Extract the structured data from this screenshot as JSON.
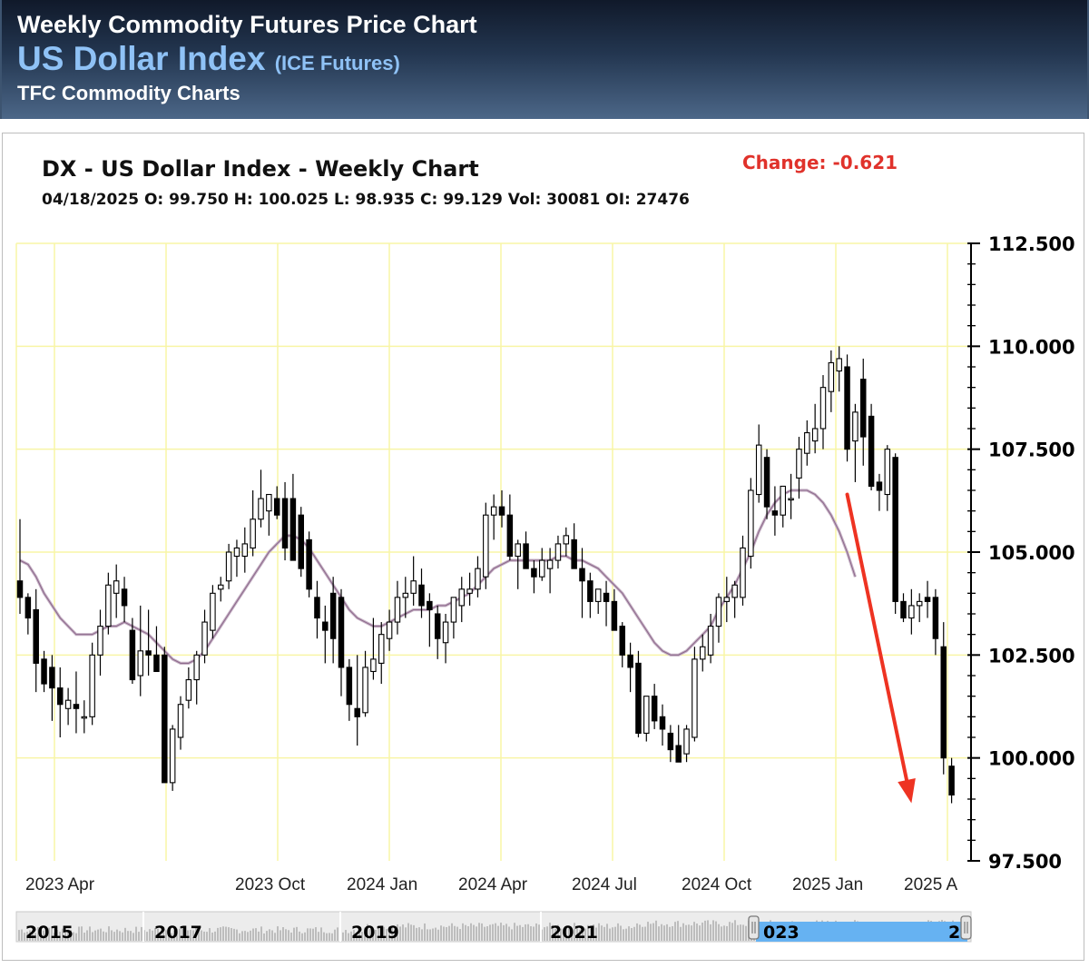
{
  "header": {
    "line1": "Weekly Commodity Futures Price Chart",
    "line2_main": "US Dollar Index",
    "line2_sub": "(ICE Futures)",
    "line3": "TFC Commodity Charts"
  },
  "chart_header": {
    "title": "DX - US Dollar Index - Weekly Chart",
    "change": "Change: -0.621",
    "ohlc": "04/18/2025 O: 99.750 H: 100.025 L: 98.935 C: 99.129 Vol: 30081 OI: 27476"
  },
  "colors": {
    "grid": "#f8f5a6",
    "candle": "#000000",
    "ma_outer": "#c7b3c6",
    "ma_inner": "#8e6b8d",
    "arrow": "#ee3322",
    "change_text": "#e0322b",
    "navigator_highlight": "#66b2f2"
  },
  "chart_data": {
    "type": "candlestick",
    "interval": "weekly",
    "ylim": [
      97.5,
      112.5
    ],
    "y_ticks": [
      "112.500",
      "110.000",
      "107.500",
      "105.000",
      "102.500",
      "100.000",
      "97.500"
    ],
    "x_ticks": [
      "2023 Apr",
      "2023 Oct",
      "2024 Jan",
      "2024 Apr",
      "2024 Jul",
      "2024 Oct",
      "2025 Jan",
      "2025 A"
    ],
    "grid": true,
    "moving_average_line": true,
    "candles": [
      {
        "o": 104.3,
        "h": 105.8,
        "l": 103.5,
        "c": 103.9
      },
      {
        "o": 103.9,
        "h": 104.0,
        "l": 103.0,
        "c": 103.4
      },
      {
        "o": 103.6,
        "h": 104.1,
        "l": 101.6,
        "c": 102.3
      },
      {
        "o": 102.4,
        "h": 102.6,
        "l": 101.6,
        "c": 101.8
      },
      {
        "o": 102.2,
        "h": 102.5,
        "l": 100.9,
        "c": 101.7
      },
      {
        "o": 101.7,
        "h": 102.2,
        "l": 100.5,
        "c": 101.3
      },
      {
        "o": 101.2,
        "h": 101.7,
        "l": 100.8,
        "c": 101.4
      },
      {
        "o": 101.3,
        "h": 102.1,
        "l": 100.6,
        "c": 101.2
      },
      {
        "o": 101.0,
        "h": 101.4,
        "l": 100.6,
        "c": 101.0
      },
      {
        "o": 101.0,
        "h": 102.8,
        "l": 100.8,
        "c": 102.5
      },
      {
        "o": 102.5,
        "h": 103.6,
        "l": 102.0,
        "c": 103.2
      },
      {
        "o": 103.2,
        "h": 104.5,
        "l": 103.0,
        "c": 104.2
      },
      {
        "o": 104.0,
        "h": 104.7,
        "l": 103.4,
        "c": 104.3
      },
      {
        "o": 104.1,
        "h": 104.4,
        "l": 103.3,
        "c": 103.7
      },
      {
        "o": 103.1,
        "h": 103.4,
        "l": 101.8,
        "c": 101.9
      },
      {
        "o": 102.0,
        "h": 103.7,
        "l": 101.5,
        "c": 102.6
      },
      {
        "o": 102.6,
        "h": 103.6,
        "l": 102.0,
        "c": 102.5
      },
      {
        "o": 102.5,
        "h": 103.2,
        "l": 102.2,
        "c": 102.1
      },
      {
        "o": 102.5,
        "h": 102.7,
        "l": 99.4,
        "c": 99.4
      },
      {
        "o": 99.4,
        "h": 100.8,
        "l": 99.2,
        "c": 100.7
      },
      {
        "o": 100.5,
        "h": 101.5,
        "l": 100.2,
        "c": 101.3
      },
      {
        "o": 101.4,
        "h": 102.2,
        "l": 101.2,
        "c": 101.9
      },
      {
        "o": 101.9,
        "h": 102.6,
        "l": 101.3,
        "c": 102.5
      },
      {
        "o": 102.5,
        "h": 103.6,
        "l": 102.3,
        "c": 103.3
      },
      {
        "o": 103.1,
        "h": 104.2,
        "l": 102.9,
        "c": 104.0
      },
      {
        "o": 104.1,
        "h": 104.4,
        "l": 103.8,
        "c": 104.2
      },
      {
        "o": 104.3,
        "h": 105.2,
        "l": 104.1,
        "c": 105.0
      },
      {
        "o": 104.9,
        "h": 105.3,
        "l": 104.4,
        "c": 105.1
      },
      {
        "o": 104.9,
        "h": 105.6,
        "l": 104.5,
        "c": 105.2
      },
      {
        "o": 105.1,
        "h": 106.5,
        "l": 104.9,
        "c": 105.8
      },
      {
        "o": 105.8,
        "h": 107.0,
        "l": 105.6,
        "c": 106.3
      },
      {
        "o": 106.0,
        "h": 106.4,
        "l": 105.4,
        "c": 106.4
      },
      {
        "o": 106.3,
        "h": 106.6,
        "l": 105.8,
        "c": 105.9
      },
      {
        "o": 106.3,
        "h": 106.7,
        "l": 104.8,
        "c": 105.1
      },
      {
        "o": 106.3,
        "h": 106.9,
        "l": 104.9,
        "c": 104.8
      },
      {
        "o": 105.9,
        "h": 106.1,
        "l": 104.4,
        "c": 104.6
      },
      {
        "o": 105.3,
        "h": 105.5,
        "l": 103.9,
        "c": 104.1
      },
      {
        "o": 103.9,
        "h": 104.3,
        "l": 102.9,
        "c": 103.4
      },
      {
        "o": 103.3,
        "h": 103.7,
        "l": 102.3,
        "c": 103.1
      },
      {
        "o": 104.0,
        "h": 104.4,
        "l": 102.3,
        "c": 102.9
      },
      {
        "o": 103.9,
        "h": 104.1,
        "l": 101.5,
        "c": 102.2
      },
      {
        "o": 102.2,
        "h": 102.4,
        "l": 100.9,
        "c": 101.3
      },
      {
        "o": 101.2,
        "h": 102.5,
        "l": 100.3,
        "c": 101.0
      },
      {
        "o": 101.1,
        "h": 102.6,
        "l": 101.0,
        "c": 102.2
      },
      {
        "o": 102.1,
        "h": 103.4,
        "l": 101.9,
        "c": 102.4
      },
      {
        "o": 102.3,
        "h": 103.3,
        "l": 101.8,
        "c": 103.0
      },
      {
        "o": 102.9,
        "h": 103.6,
        "l": 102.6,
        "c": 103.3
      },
      {
        "o": 103.3,
        "h": 104.3,
        "l": 103.0,
        "c": 103.9
      },
      {
        "o": 103.9,
        "h": 104.4,
        "l": 103.4,
        "c": 104.0
      },
      {
        "o": 104.0,
        "h": 104.9,
        "l": 103.7,
        "c": 104.3
      },
      {
        "o": 104.2,
        "h": 104.6,
        "l": 103.4,
        "c": 103.7
      },
      {
        "o": 103.8,
        "h": 104.0,
        "l": 102.7,
        "c": 103.6
      },
      {
        "o": 103.5,
        "h": 103.7,
        "l": 102.4,
        "c": 102.9
      },
      {
        "o": 102.8,
        "h": 103.5,
        "l": 102.3,
        "c": 103.3
      },
      {
        "o": 103.3,
        "h": 103.9,
        "l": 102.9,
        "c": 103.9
      },
      {
        "o": 103.7,
        "h": 104.4,
        "l": 103.3,
        "c": 104.1
      },
      {
        "o": 104.0,
        "h": 104.5,
        "l": 103.7,
        "c": 104.1
      },
      {
        "o": 104.1,
        "h": 104.9,
        "l": 103.9,
        "c": 104.6
      },
      {
        "o": 104.4,
        "h": 106.2,
        "l": 104.1,
        "c": 105.9
      },
      {
        "o": 105.9,
        "h": 106.4,
        "l": 105.3,
        "c": 106.1
      },
      {
        "o": 106.1,
        "h": 106.5,
        "l": 105.6,
        "c": 105.9
      },
      {
        "o": 105.9,
        "h": 106.4,
        "l": 104.8,
        "c": 104.9
      },
      {
        "o": 104.9,
        "h": 105.3,
        "l": 104.1,
        "c": 105.2
      },
      {
        "o": 105.2,
        "h": 105.5,
        "l": 104.6,
        "c": 104.6
      },
      {
        "o": 104.6,
        "h": 104.8,
        "l": 104.0,
        "c": 104.4
      },
      {
        "o": 104.4,
        "h": 105.1,
        "l": 104.3,
        "c": 104.8
      },
      {
        "o": 104.6,
        "h": 105.1,
        "l": 104.0,
        "c": 104.8
      },
      {
        "o": 104.8,
        "h": 105.4,
        "l": 104.6,
        "c": 105.2
      },
      {
        "o": 105.2,
        "h": 105.6,
        "l": 104.9,
        "c": 105.4
      },
      {
        "o": 105.3,
        "h": 105.7,
        "l": 104.6,
        "c": 104.6
      },
      {
        "o": 104.6,
        "h": 105.1,
        "l": 103.4,
        "c": 104.3
      },
      {
        "o": 104.3,
        "h": 104.5,
        "l": 103.4,
        "c": 103.8
      },
      {
        "o": 103.8,
        "h": 104.0,
        "l": 103.5,
        "c": 104.1
      },
      {
        "o": 104.0,
        "h": 104.3,
        "l": 103.2,
        "c": 103.8
      },
      {
        "o": 103.8,
        "h": 104.1,
        "l": 103.1,
        "c": 103.1
      },
      {
        "o": 103.2,
        "h": 103.3,
        "l": 102.2,
        "c": 102.5
      },
      {
        "o": 102.5,
        "h": 102.8,
        "l": 101.6,
        "c": 102.2
      },
      {
        "o": 102.3,
        "h": 102.6,
        "l": 100.5,
        "c": 100.6
      },
      {
        "o": 100.6,
        "h": 101.5,
        "l": 100.4,
        "c": 101.5
      },
      {
        "o": 101.5,
        "h": 101.8,
        "l": 100.7,
        "c": 100.9
      },
      {
        "o": 101.0,
        "h": 101.3,
        "l": 100.3,
        "c": 100.7
      },
      {
        "o": 100.6,
        "h": 100.8,
        "l": 99.9,
        "c": 100.2
      },
      {
        "o": 100.3,
        "h": 100.8,
        "l": 99.9,
        "c": 99.9
      },
      {
        "o": 100.1,
        "h": 100.8,
        "l": 99.9,
        "c": 100.7
      },
      {
        "o": 100.5,
        "h": 102.7,
        "l": 100.4,
        "c": 102.4
      },
      {
        "o": 102.4,
        "h": 103.0,
        "l": 102.1,
        "c": 102.7
      },
      {
        "o": 102.5,
        "h": 103.5,
        "l": 102.3,
        "c": 103.2
      },
      {
        "o": 103.2,
        "h": 104.0,
        "l": 102.8,
        "c": 103.9
      },
      {
        "o": 103.8,
        "h": 104.4,
        "l": 103.3,
        "c": 103.9
      },
      {
        "o": 103.9,
        "h": 104.3,
        "l": 103.4,
        "c": 104.2
      },
      {
        "o": 103.9,
        "h": 105.4,
        "l": 103.7,
        "c": 105.1
      },
      {
        "o": 104.9,
        "h": 106.8,
        "l": 104.6,
        "c": 106.5
      },
      {
        "o": 106.4,
        "h": 108.1,
        "l": 106.2,
        "c": 107.6
      },
      {
        "o": 107.3,
        "h": 107.5,
        "l": 105.8,
        "c": 106.1
      },
      {
        "o": 106.0,
        "h": 106.6,
        "l": 105.4,
        "c": 105.9
      },
      {
        "o": 105.9,
        "h": 106.5,
        "l": 105.6,
        "c": 106.6
      },
      {
        "o": 106.3,
        "h": 106.9,
        "l": 105.8,
        "c": 106.3
      },
      {
        "o": 106.8,
        "h": 107.8,
        "l": 106.3,
        "c": 107.5
      },
      {
        "o": 107.4,
        "h": 108.2,
        "l": 107.1,
        "c": 107.9
      },
      {
        "o": 107.7,
        "h": 108.6,
        "l": 107.4,
        "c": 108.0
      },
      {
        "o": 108.0,
        "h": 109.3,
        "l": 107.5,
        "c": 109.0
      },
      {
        "o": 108.9,
        "h": 109.9,
        "l": 108.4,
        "c": 109.6
      },
      {
        "o": 109.4,
        "h": 110.0,
        "l": 108.9,
        "c": 109.7
      },
      {
        "o": 109.5,
        "h": 109.8,
        "l": 107.2,
        "c": 107.5
      },
      {
        "o": 107.7,
        "h": 108.6,
        "l": 106.7,
        "c": 108.4
      },
      {
        "o": 109.2,
        "h": 109.7,
        "l": 107.1,
        "c": 107.8
      },
      {
        "o": 108.3,
        "h": 108.6,
        "l": 106.5,
        "c": 106.6
      },
      {
        "o": 106.7,
        "h": 106.9,
        "l": 106.0,
        "c": 106.5
      },
      {
        "o": 106.4,
        "h": 107.6,
        "l": 106.0,
        "c": 107.5
      },
      {
        "o": 107.3,
        "h": 107.4,
        "l": 103.5,
        "c": 103.8
      },
      {
        "o": 103.8,
        "h": 104.0,
        "l": 103.3,
        "c": 103.4
      },
      {
        "o": 103.4,
        "h": 104.1,
        "l": 103.0,
        "c": 103.7
      },
      {
        "o": 103.7,
        "h": 104.0,
        "l": 103.3,
        "c": 103.8
      },
      {
        "o": 103.9,
        "h": 104.3,
        "l": 103.4,
        "c": 103.8
      },
      {
        "o": 103.9,
        "h": 104.1,
        "l": 102.5,
        "c": 102.9
      },
      {
        "o": 102.7,
        "h": 103.3,
        "l": 99.6,
        "c": 100.0
      },
      {
        "o": 99.8,
        "h": 100.0,
        "l": 98.9,
        "c": 99.1
      }
    ],
    "moving_average": [
      104.8,
      104.7,
      104.4,
      104.0,
      103.7,
      103.4,
      103.2,
      103.0,
      103.0,
      103.0,
      103.1,
      103.2,
      103.2,
      103.3,
      103.2,
      103.1,
      103.0,
      102.8,
      102.6,
      102.4,
      102.3,
      102.3,
      102.4,
      102.6,
      102.9,
      103.2,
      103.5,
      103.8,
      104.1,
      104.4,
      104.7,
      105.0,
      105.2,
      105.4,
      105.4,
      105.3,
      105.1,
      104.8,
      104.5,
      104.2,
      103.9,
      103.6,
      103.4,
      103.3,
      103.2,
      103.2,
      103.3,
      103.4,
      103.5,
      103.6,
      103.6,
      103.6,
      103.7,
      103.7,
      103.8,
      103.9,
      104.0,
      104.2,
      104.4,
      104.6,
      104.7,
      104.8,
      104.8,
      104.8,
      104.8,
      104.8,
      104.8,
      104.9,
      104.9,
      104.8,
      104.8,
      104.7,
      104.6,
      104.4,
      104.2,
      104.0,
      103.7,
      103.4,
      103.1,
      102.8,
      102.6,
      102.5,
      102.5,
      102.6,
      102.8,
      103.0,
      103.2,
      103.6,
      103.9,
      104.2,
      104.6,
      105.0,
      105.5,
      105.9,
      106.2,
      106.4,
      106.5,
      106.5,
      106.5,
      106.4,
      106.2,
      105.9,
      105.5,
      105.0,
      104.4
    ]
  },
  "annotation": {
    "type": "arrow",
    "from": {
      "week_index": 103,
      "value": 106.4
    },
    "to": {
      "week_index": 111,
      "value": 98.9
    }
  },
  "navigator": {
    "labels": [
      "2015",
      "2017",
      "2019",
      "2021",
      "023",
      "2"
    ]
  }
}
